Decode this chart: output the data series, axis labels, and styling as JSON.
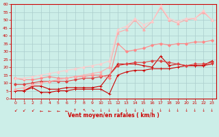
{
  "xlabel": "Vent moyen/en rafales ( km/h )",
  "bg_color": "#cceee8",
  "grid_color": "#aacccc",
  "axis_color": "#cc0000",
  "xlabel_color": "#cc0000",
  "tick_color": "#cc0000",
  "xlim": [
    -0.5,
    23.5
  ],
  "ylim": [
    0,
    60
  ],
  "yticks": [
    0,
    5,
    10,
    15,
    20,
    25,
    30,
    35,
    40,
    45,
    50,
    55,
    60
  ],
  "xticks": [
    0,
    1,
    2,
    3,
    4,
    5,
    6,
    7,
    8,
    9,
    10,
    11,
    12,
    13,
    14,
    15,
    16,
    17,
    18,
    19,
    20,
    21,
    22,
    23
  ],
  "series": [
    {
      "x": [
        0,
        1,
        2,
        3,
        4,
        5,
        6,
        7,
        8,
        9,
        10,
        11,
        12,
        13,
        14,
        15,
        16,
        17,
        18,
        19,
        20,
        21,
        22,
        23
      ],
      "y": [
        5,
        5,
        7,
        4,
        4,
        5,
        5,
        6,
        6,
        6,
        6,
        3,
        15,
        17,
        18,
        18,
        19,
        19,
        19,
        20,
        21,
        21,
        21,
        22
      ],
      "color": "#cc0000",
      "lw": 0.8,
      "marker": "+",
      "ms": 3
    },
    {
      "x": [
        0,
        1,
        2,
        3,
        4,
        5,
        6,
        7,
        8,
        9,
        10,
        11,
        12,
        13,
        14,
        15,
        16,
        17,
        18,
        19,
        20,
        21,
        22,
        23
      ],
      "y": [
        5,
        5,
        8,
        8,
        6,
        6,
        7,
        7,
        7,
        7,
        8,
        15,
        22,
        22,
        22,
        21,
        20,
        27,
        21,
        22,
        21,
        21,
        21,
        24
      ],
      "color": "#cc0000",
      "lw": 0.8,
      "marker": "+",
      "ms": 3
    },
    {
      "x": [
        0,
        1,
        2,
        3,
        4,
        5,
        6,
        7,
        8,
        9,
        10,
        11,
        12,
        13,
        14,
        15,
        16,
        17,
        18,
        19,
        20,
        21,
        22,
        23
      ],
      "y": [
        9,
        9,
        10,
        11,
        11,
        11,
        11,
        12,
        13,
        13,
        14,
        15,
        21,
        22,
        23,
        23,
        24,
        24,
        23,
        22,
        21,
        22,
        22,
        23
      ],
      "color": "#dd4444",
      "lw": 0.8,
      "marker": "D",
      "ms": 2
    },
    {
      "x": [
        0,
        1,
        2,
        3,
        4,
        5,
        6,
        7,
        8,
        9,
        10,
        11,
        12,
        13,
        14,
        15,
        16,
        17,
        18,
        19,
        20,
        21,
        22,
        23
      ],
      "y": [
        13,
        12,
        12,
        13,
        14,
        13,
        13,
        14,
        14,
        15,
        15,
        13,
        35,
        30,
        31,
        32,
        34,
        35,
        34,
        35,
        35,
        36,
        36,
        37
      ],
      "color": "#ff8888",
      "lw": 0.8,
      "marker": "D",
      "ms": 2
    },
    {
      "x": [
        0,
        1,
        2,
        3,
        4,
        5,
        6,
        7,
        8,
        9,
        10,
        11,
        12,
        13,
        14,
        15,
        16,
        17,
        18,
        19,
        20,
        21,
        22,
        23
      ],
      "y": [
        6,
        7,
        9,
        10,
        11,
        12,
        13,
        14,
        15,
        16,
        17,
        20,
        42,
        44,
        50,
        44,
        49,
        58,
        50,
        48,
        50,
        51,
        55,
        50
      ],
      "color": "#ffaaaa",
      "lw": 0.8,
      "marker": "^",
      "ms": 2.5
    },
    {
      "x": [
        0,
        1,
        2,
        3,
        4,
        5,
        6,
        7,
        8,
        9,
        10,
        11,
        12,
        13,
        14,
        15,
        16,
        17,
        18,
        19,
        20,
        21,
        22,
        23
      ],
      "y": [
        13,
        13,
        14,
        15,
        16,
        17,
        18,
        19,
        20,
        21,
        22,
        24,
        44,
        46,
        51,
        47,
        49,
        59,
        51,
        49,
        51,
        51,
        56,
        50
      ],
      "color": "#ffcccc",
      "lw": 0.8,
      "marker": "^",
      "ms": 2.5
    }
  ],
  "figsize": [
    3.2,
    2.0
  ],
  "dpi": 100
}
